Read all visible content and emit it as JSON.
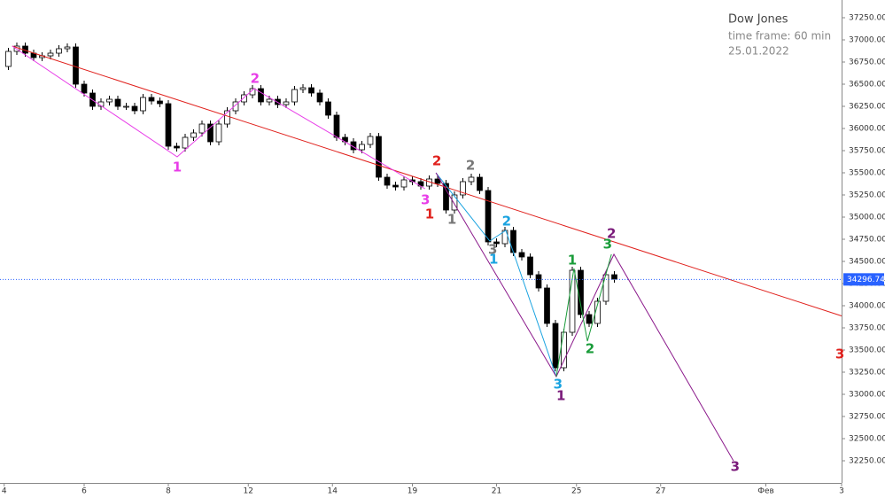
{
  "chart_data": {
    "type": "candlestick",
    "title": "Dow Jones",
    "subtitle": "time frame: 60 min",
    "date": "25.01.2022",
    "up_color": "#ffffff",
    "down_color": "#000000",
    "xlim": [
      0,
      200
    ],
    "ylim": [
      32000,
      37450
    ],
    "xticks": [
      {
        "value": 1,
        "label": "4"
      },
      {
        "value": 20,
        "label": "6"
      },
      {
        "value": 40,
        "label": "8"
      },
      {
        "value": 59,
        "label": "12"
      },
      {
        "value": 79,
        "label": "14"
      },
      {
        "value": 98,
        "label": "19"
      },
      {
        "value": 118,
        "label": "21"
      },
      {
        "value": 137,
        "label": "25"
      },
      {
        "value": 157,
        "label": "27"
      },
      {
        "value": 182,
        "label": "Фев"
      },
      {
        "value": 200,
        "label": "3"
      }
    ],
    "yticks": [
      {
        "value": 32250,
        "label": "32250.00"
      },
      {
        "value": 32500,
        "label": "32500.00"
      },
      {
        "value": 32750,
        "label": "32750.00"
      },
      {
        "value": 33000,
        "label": "33000.00"
      },
      {
        "value": 33250,
        "label": "33250.00"
      },
      {
        "value": 33500,
        "label": "33500.00"
      },
      {
        "value": 33750,
        "label": "33750.00"
      },
      {
        "value": 34000,
        "label": "34000.00"
      },
      {
        "value": 34250,
        "label": "34250.00"
      },
      {
        "value": 34500,
        "label": "34500.00"
      },
      {
        "value": 34750,
        "label": "34750.00"
      },
      {
        "value": 35000,
        "label": "35000.00"
      },
      {
        "value": 35250,
        "label": "35250.00"
      },
      {
        "value": 35500,
        "label": "35500.00"
      },
      {
        "value": 35750,
        "label": "35750.00"
      },
      {
        "value": 36000,
        "label": "36000.00"
      },
      {
        "value": 36250,
        "label": "36250.00"
      },
      {
        "value": 36500,
        "label": "36500.00"
      },
      {
        "value": 36750,
        "label": "36750.00"
      },
      {
        "value": 37000,
        "label": "37000.00"
      },
      {
        "value": 37250,
        "label": "37250.00"
      }
    ],
    "price_line": {
      "value": 34296.74,
      "color": "#2962ff"
    },
    "x": [
      2,
      4,
      6,
      8,
      10,
      12,
      14,
      16,
      18,
      20,
      22,
      24,
      26,
      28,
      30,
      32,
      34,
      36,
      38,
      40,
      42,
      44,
      46,
      48,
      50,
      52,
      54,
      56,
      58,
      60,
      62,
      64,
      66,
      68,
      70,
      72,
      74,
      76,
      78,
      80,
      82,
      84,
      86,
      88,
      90,
      92,
      94,
      96,
      98,
      100,
      102,
      104,
      106,
      108,
      110,
      112,
      114,
      116,
      118,
      120,
      122,
      124,
      126,
      128,
      130,
      132,
      134,
      136,
      138,
      140,
      142,
      144,
      146
    ],
    "open": [
      36700,
      36870,
      36930,
      36850,
      36800,
      36820,
      36850,
      36900,
      36920,
      36500,
      36400,
      36250,
      36300,
      36330,
      36250,
      36250,
      36200,
      36350,
      36310,
      36280,
      35800,
      35780,
      35900,
      35950,
      36050,
      35850,
      36050,
      36200,
      36300,
      36380,
      36450,
      36300,
      36330,
      36270,
      36300,
      36440,
      36460,
      36400,
      36300,
      36150,
      35900,
      35850,
      35760,
      35820,
      35910,
      35450,
      35360,
      35340,
      35420,
      35400,
      35350,
      35430,
      35380,
      35080,
      35250,
      35400,
      35450,
      35300,
      34720,
      34700,
      34850,
      34600,
      34550,
      34350,
      34200,
      33800,
      33300,
      33700,
      34400,
      33900,
      33800,
      34050,
      34350
    ],
    "high": [
      36910,
      36970,
      36970,
      36890,
      36860,
      36890,
      36940,
      36960,
      36960,
      36540,
      36440,
      36340,
      36370,
      36370,
      36290,
      36290,
      36390,
      36390,
      36350,
      36320,
      35840,
      35940,
      35990,
      36090,
      36090,
      36090,
      36240,
      36340,
      36420,
      36490,
      36490,
      36370,
      36370,
      36340,
      36480,
      36500,
      36500,
      36440,
      36340,
      36190,
      35940,
      35890,
      35860,
      35950,
      35950,
      35490,
      35400,
      35460,
      35460,
      35440,
      35470,
      35470,
      35420,
      35290,
      35440,
      35490,
      35490,
      35340,
      34760,
      34890,
      34890,
      34640,
      34590,
      34390,
      34240,
      33840,
      33740,
      34440,
      34440,
      33940,
      34090,
      34390,
      34390
    ],
    "low": [
      36660,
      36830,
      36810,
      36760,
      36760,
      36780,
      36810,
      36860,
      36460,
      36360,
      36210,
      36210,
      36260,
      36210,
      36210,
      36160,
      36160,
      36270,
      36240,
      35760,
      35740,
      35740,
      35860,
      35910,
      35810,
      35810,
      36010,
      36160,
      36260,
      36340,
      36260,
      36260,
      36230,
      36230,
      36260,
      36400,
      36360,
      36260,
      36110,
      35860,
      35810,
      35720,
      35720,
      35780,
      35410,
      35320,
      35300,
      35300,
      35360,
      35310,
      35310,
      35340,
      35040,
      35040,
      35210,
      35360,
      35260,
      34680,
      34660,
      34660,
      34560,
      34510,
      34310,
      34160,
      33760,
      33260,
      33260,
      33660,
      33860,
      33760,
      33760,
      34010,
      34260
    ],
    "close": [
      36870,
      36930,
      36850,
      36800,
      36820,
      36850,
      36900,
      36920,
      36500,
      36400,
      36250,
      36300,
      36330,
      36250,
      36250,
      36200,
      36350,
      36310,
      36280,
      35800,
      35780,
      35900,
      35950,
      36050,
      35850,
      36050,
      36200,
      36300,
      36380,
      36450,
      36300,
      36330,
      36270,
      36300,
      36440,
      36460,
      36400,
      36300,
      36150,
      35900,
      35850,
      35760,
      35820,
      35910,
      35450,
      35360,
      35340,
      35420,
      35400,
      35350,
      35430,
      35380,
      35080,
      35250,
      35400,
      35450,
      35300,
      34720,
      34700,
      34850,
      34600,
      34550,
      34350,
      34200,
      33800,
      33300,
      33700,
      34400,
      33900,
      33800,
      34050,
      34350,
      34300
    ],
    "lines": [
      {
        "color": "#e0201c",
        "x": [
          2.9,
          200
        ],
        "y": [
          36930,
          33885
        ]
      },
      {
        "color": "#e83de8",
        "x": [
          2.9,
          42.1,
          60.4,
          101
        ],
        "y": [
          36930,
          35680,
          36450,
          35320
        ]
      },
      {
        "color": "#1aa3e0",
        "x": [
          103.6,
          116.4,
          120.2,
          132.2
        ],
        "y": [
          35500,
          34730,
          34850,
          33200
        ]
      },
      {
        "color": "#8b1a8b",
        "x": [
          103.6,
          132.2,
          145.9,
          174.3
        ],
        "y": [
          35500,
          33200,
          34580,
          32250
        ]
      },
      {
        "color": "#1a9c3a",
        "x": [
          132.2,
          136.4,
          139.6,
          145.3
        ],
        "y": [
          33200,
          34420,
          33600,
          34580
        ]
      }
    ],
    "annotations": [
      {
        "text": "1",
        "x": 42.1,
        "y": 35560,
        "color": "#e83de8"
      },
      {
        "text": "2",
        "x": 60.6,
        "y": 36560,
        "color": "#e83de8"
      },
      {
        "text": "3",
        "x": 101.1,
        "y": 35190,
        "color": "#e83de8"
      },
      {
        "text": "1",
        "x": 102.1,
        "y": 35030,
        "color": "#e0201c"
      },
      {
        "text": "2",
        "x": 103.8,
        "y": 35630,
        "color": "#e0201c"
      },
      {
        "text": "3",
        "x": 199.6,
        "y": 33450,
        "color": "#e0201c"
      },
      {
        "text": "2",
        "x": 111.8,
        "y": 35580,
        "color": "#777777"
      },
      {
        "text": "1",
        "x": 107.4,
        "y": 34970,
        "color": "#777777"
      },
      {
        "text": "3",
        "x": 117.1,
        "y": 34630,
        "color": "#777777"
      },
      {
        "text": "2",
        "x": 120.4,
        "y": 34950,
        "color": "#1aa3e0"
      },
      {
        "text": "1",
        "x": 117.3,
        "y": 34520,
        "color": "#1aa3e0"
      },
      {
        "text": "3",
        "x": 132.6,
        "y": 33110,
        "color": "#1aa3e0"
      },
      {
        "text": "1",
        "x": 133.3,
        "y": 32980,
        "color": "#7a1a7a"
      },
      {
        "text": "2",
        "x": 145.3,
        "y": 34810,
        "color": "#7a1a7a"
      },
      {
        "text": "3",
        "x": 174.7,
        "y": 32180,
        "color": "#7a1a7a"
      },
      {
        "text": "1",
        "x": 136,
        "y": 34510,
        "color": "#1a9c3a"
      },
      {
        "text": "3",
        "x": 144.4,
        "y": 34690,
        "color": "#1a9c3a"
      },
      {
        "text": "2",
        "x": 140.2,
        "y": 33510,
        "color": "#1a9c3a"
      }
    ]
  }
}
